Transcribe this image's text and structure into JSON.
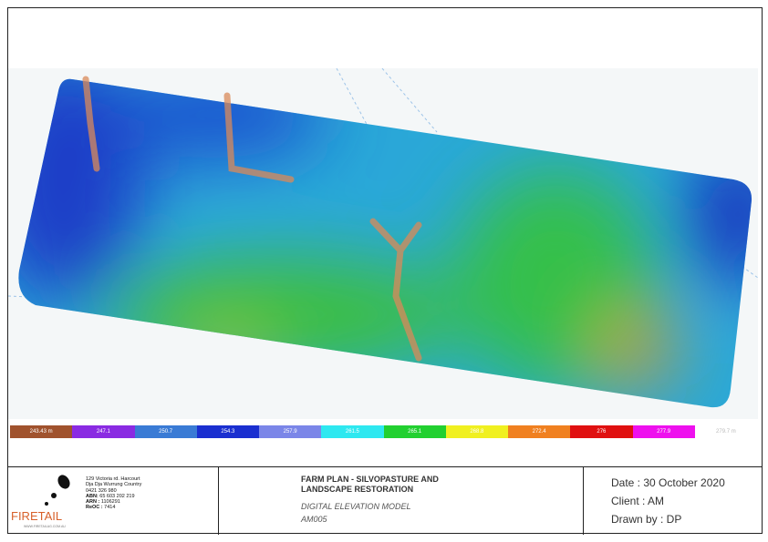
{
  "map": {
    "legend": [
      "243.43 m",
      "247.1",
      "250.7",
      "254.3",
      "257.9",
      "261.5",
      "265.1",
      "268.8",
      "272.4",
      "276",
      "277.9",
      "279.7 m"
    ]
  },
  "title_block": {
    "company": "FIRETAIL",
    "website": "WWW.FIRETAILAG.COM.AU",
    "address": [
      "129 Victoria rd. Harcourt",
      "Dja Dja Wurrung Country",
      "0421 326 980"
    ],
    "ids": [
      {
        "label": "ABN:",
        "value": "65 603 202 219"
      },
      {
        "label": "ARN :",
        "value": "1106291"
      },
      {
        "label": "ReOC :",
        "value": "7414"
      }
    ],
    "project": "FARM PLAN - SILVOPASTURE AND LANDSCAPE RESTORATION",
    "drawing": "DIGITAL ELEVATION MODEL",
    "number": "AM005",
    "date": "Date : 30 October 2020",
    "client": "Client : AM",
    "drawn_by": "Drawn by : DP"
  }
}
